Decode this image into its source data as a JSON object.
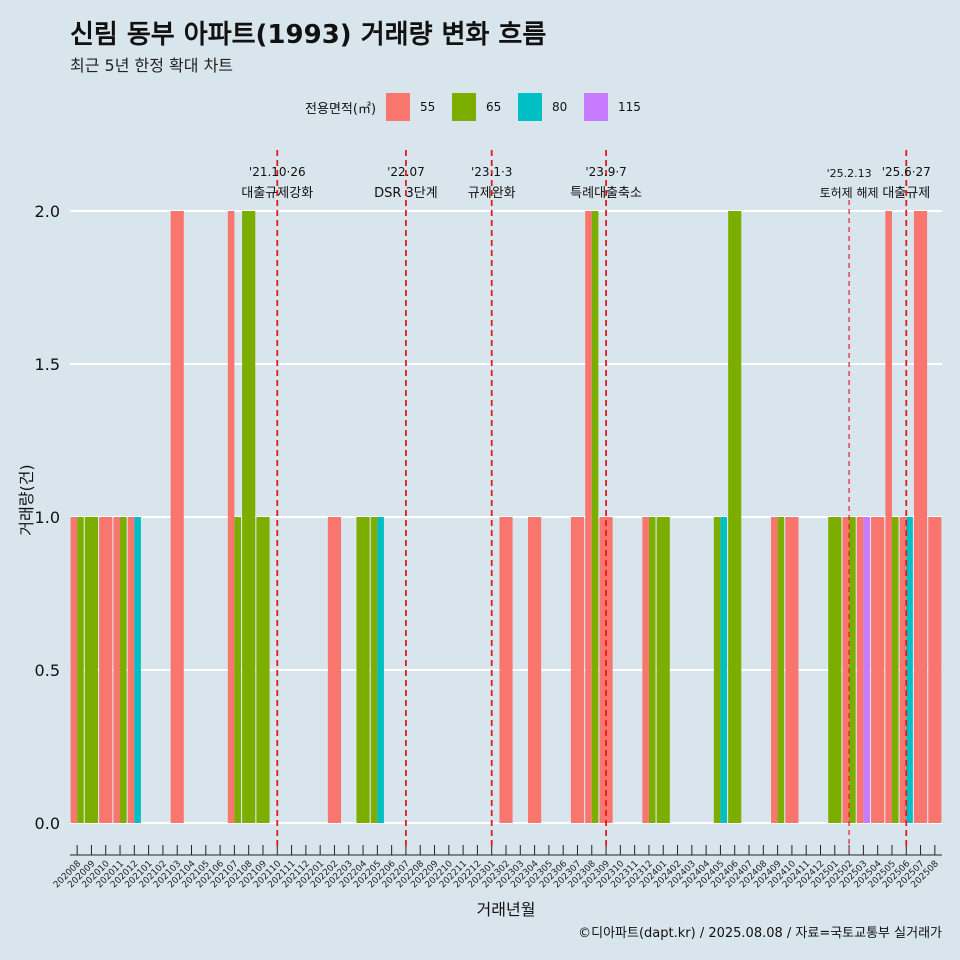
{
  "header": {
    "title": "신림 동부 아파트(1993) 거래량 변화 흐름",
    "subtitle": "최근 5년 한정 확대 차트"
  },
  "legend": {
    "title": "전용면적(㎡)",
    "items": [
      {
        "label": "55",
        "color": "#f8766d"
      },
      {
        "label": "65",
        "color": "#7cae00"
      },
      {
        "label": "80",
        "color": "#00bfc4"
      },
      {
        "label": "115",
        "color": "#c77cff"
      }
    ]
  },
  "caption": "©디아파트(dapt.kr) / 2025.08.08 / 자료=국토교통부 실거래가",
  "chart_data": {
    "type": "bar",
    "xlabel": "거래년월",
    "ylabel": "거래량(건)",
    "ylim": [
      0,
      2.0
    ],
    "yticks": [
      0.0,
      0.5,
      1.0,
      1.5,
      2.0
    ],
    "ytick_labels": [
      "0.0",
      "0.5",
      "1.0",
      "1.5",
      "2.0"
    ],
    "grid": true,
    "legend_position": "top",
    "categories": [
      "202008",
      "202009",
      "202010",
      "202011",
      "202012",
      "202101",
      "202102",
      "202103",
      "202104",
      "202105",
      "202106",
      "202107",
      "202108",
      "202109",
      "202110",
      "202111",
      "202112",
      "202201",
      "202202",
      "202203",
      "202204",
      "202205",
      "202206",
      "202207",
      "202208",
      "202209",
      "202210",
      "202211",
      "202212",
      "202301",
      "202302",
      "202303",
      "202304",
      "202305",
      "202306",
      "202307",
      "202308",
      "202309",
      "202310",
      "202311",
      "202312",
      "202401",
      "202402",
      "202403",
      "202404",
      "202405",
      "202406",
      "202407",
      "202408",
      "202409",
      "202410",
      "202411",
      "202412",
      "202501",
      "202502",
      "202503",
      "202504",
      "202505",
      "202506",
      "202507",
      "202508"
    ],
    "bars": [
      {
        "month": "202008",
        "sizes": [
          "55",
          "65"
        ],
        "values": [
          1,
          1
        ]
      },
      {
        "month": "202009",
        "sizes": [
          "65"
        ],
        "values": [
          1
        ]
      },
      {
        "month": "202010",
        "sizes": [
          "55"
        ],
        "values": [
          1
        ]
      },
      {
        "month": "202011",
        "sizes": [
          "55",
          "65"
        ],
        "values": [
          1,
          1
        ]
      },
      {
        "month": "202012",
        "sizes": [
          "55",
          "80"
        ],
        "values": [
          1,
          1
        ]
      },
      {
        "month": "202103",
        "sizes": [
          "55"
        ],
        "values": [
          2
        ]
      },
      {
        "month": "202107",
        "sizes": [
          "55",
          "65"
        ],
        "values": [
          2,
          1
        ]
      },
      {
        "month": "202108",
        "sizes": [
          "65"
        ],
        "values": [
          2
        ]
      },
      {
        "month": "202109",
        "sizes": [
          "65"
        ],
        "values": [
          1
        ]
      },
      {
        "month": "202202",
        "sizes": [
          "55"
        ],
        "values": [
          1
        ]
      },
      {
        "month": "202204",
        "sizes": [
          "65"
        ],
        "values": [
          1
        ]
      },
      {
        "month": "202205",
        "sizes": [
          "65",
          "80"
        ],
        "values": [
          1,
          1
        ]
      },
      {
        "month": "202302",
        "sizes": [
          "55"
        ],
        "values": [
          1
        ]
      },
      {
        "month": "202304",
        "sizes": [
          "55"
        ],
        "values": [
          1
        ]
      },
      {
        "month": "202307",
        "sizes": [
          "55"
        ],
        "values": [
          1
        ]
      },
      {
        "month": "202308",
        "sizes": [
          "55",
          "65"
        ],
        "values": [
          2,
          2
        ]
      },
      {
        "month": "202309",
        "sizes": [
          "55"
        ],
        "values": [
          1
        ]
      },
      {
        "month": "202312",
        "sizes": [
          "55",
          "65"
        ],
        "values": [
          1,
          1
        ]
      },
      {
        "month": "202401",
        "sizes": [
          "65"
        ],
        "values": [
          1
        ]
      },
      {
        "month": "202405",
        "sizes": [
          "65",
          "80"
        ],
        "values": [
          1,
          1
        ]
      },
      {
        "month": "202406",
        "sizes": [
          "65"
        ],
        "values": [
          2
        ]
      },
      {
        "month": "202409",
        "sizes": [
          "55",
          "65"
        ],
        "values": [
          1,
          1
        ]
      },
      {
        "month": "202410",
        "sizes": [
          "55"
        ],
        "values": [
          1
        ]
      },
      {
        "month": "202501",
        "sizes": [
          "65"
        ],
        "values": [
          1
        ]
      },
      {
        "month": "202502",
        "sizes": [
          "55",
          "65"
        ],
        "values": [
          1,
          1
        ]
      },
      {
        "month": "202503",
        "sizes": [
          "55",
          "115"
        ],
        "values": [
          1,
          1
        ]
      },
      {
        "month": "202504",
        "sizes": [
          "55"
        ],
        "values": [
          1
        ]
      },
      {
        "month": "202505",
        "sizes": [
          "55",
          "65"
        ],
        "values": [
          2,
          1
        ]
      },
      {
        "month": "202506",
        "sizes": [
          "55",
          "80"
        ],
        "values": [
          1,
          1
        ]
      },
      {
        "month": "202507",
        "sizes": [
          "55"
        ],
        "values": [
          2
        ]
      },
      {
        "month": "202508",
        "sizes": [
          "55"
        ],
        "values": [
          1
        ]
      }
    ],
    "events": [
      {
        "month": "202110",
        "date": "'21.10·26",
        "label": "대출규제강화",
        "style": "long"
      },
      {
        "month": "202207",
        "date": "'22.07",
        "label": "DSR 3단계",
        "style": "long"
      },
      {
        "month": "202301",
        "date": "'23.1·3",
        "label": "규제완화",
        "style": "long"
      },
      {
        "month": "202309",
        "date": "'23.9·7",
        "label": "특례대출축소",
        "style": "long"
      },
      {
        "month": "202502",
        "date": "'25.2.13",
        "label": "토허제 해제",
        "style": "short"
      },
      {
        "month": "202506",
        "date": "'25.6·27",
        "label": "대출규제",
        "style": "long"
      }
    ]
  }
}
